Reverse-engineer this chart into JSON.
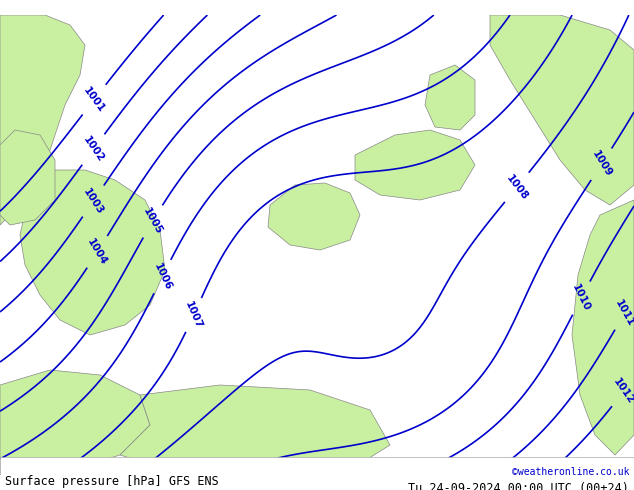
{
  "title_left": "Surface pressure [hPa] GFS ENS",
  "title_right": "Tu 24-09-2024 00:00 UTC (00+24)",
  "credit": "©weatheronline.co.uk",
  "bg_color": "#dcdcdc",
  "land_color": "#c8f0a0",
  "coast_color": "#888888",
  "contour_color": "#0000cc",
  "contour_linewidth": 1.2,
  "contour_levels": [
    1001,
    1002,
    1003,
    1004,
    1005,
    1006,
    1007,
    1008,
    1009,
    1010,
    1011,
    1012
  ],
  "font_size_label": 7.5,
  "font_size_bottom": 8.5,
  "font_size_credit": 7.0,
  "text_color": "#000000",
  "credit_color": "#0000cc"
}
